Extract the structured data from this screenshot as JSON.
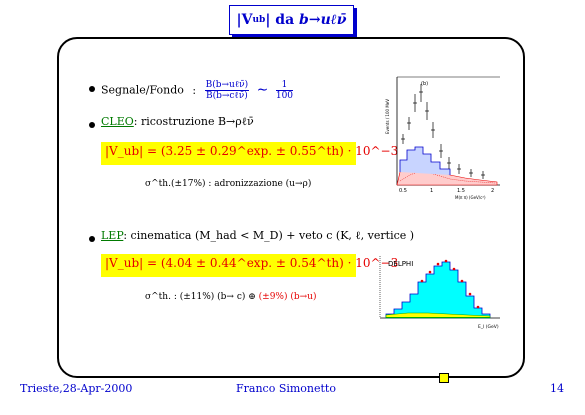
{
  "title": {
    "prefix": "|V",
    "sub": "ub",
    "middle": "| da ",
    "decay": "b→uℓν̄"
  },
  "item1": {
    "label": "Segnale/Fondo",
    "colon": ":",
    "frac_num": "B(b→uℓν̄)",
    "frac_den": "B(b→cℓν̄)",
    "sim": "∼",
    "ratio_num": "1",
    "ratio_den": "100"
  },
  "item2": {
    "link": "CLEO",
    "text": ": ricostruzione B→ρℓν̄",
    "formula": "|V_ub| = (3.25 ± 0.29^exp. ± 0.55^th) · 10^−3",
    "note": "σ^th.(±17%) : adronizzazione (u→ρ)"
  },
  "item3": {
    "link": "LEP",
    "text": ": cinematica (M_had < M_D) + veto c (K, ℓ, vertice )",
    "formula": "|V_ub| = (4.04 ± 0.44^exp. ± 0.54^th) · 10^−3",
    "note_black": "σ^th. : (±11%) (b→ c) ⊕ ",
    "note_red": "(±9%) (b→u)"
  },
  "plot_cleo": {
    "ylabel": "Events / 100 MeV",
    "xlabel": "M(π π) (GeV/c²)",
    "ticks_x": [
      "0.5",
      "1",
      "1.5",
      "2"
    ],
    "tag": "(b)"
  },
  "plot_lep": {
    "tag": "DELPHI",
    "xlabel": "E_l (GeV)"
  },
  "footer": {
    "left": "Trieste,28-Apr-2000",
    "center": "Franco Simonetto",
    "page": "14"
  }
}
